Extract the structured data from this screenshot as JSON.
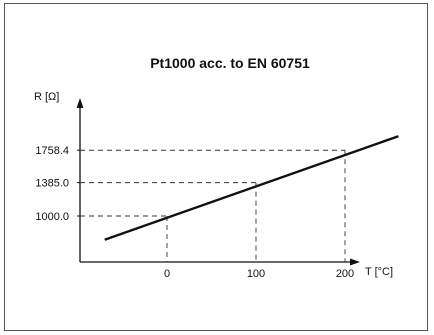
{
  "chart_data": {
    "type": "line",
    "title": "Pt1000 acc. to EN 60751",
    "xlabel": "T [°C]",
    "ylabel": "R [Ω]",
    "series": [
      {
        "x": [
          -70,
          260
        ],
        "y": [
          727,
          1920
        ]
      }
    ],
    "x_ticks": [
      {
        "value": 0,
        "label": "0"
      },
      {
        "value": 100,
        "label": "100"
      },
      {
        "value": 200,
        "label": "200"
      }
    ],
    "y_ticks": [
      {
        "value": 1000.0,
        "label": "1000.0"
      },
      {
        "value": 1385.0,
        "label": "1385.0"
      },
      {
        "value": 1758.4,
        "label": "1758.4"
      }
    ],
    "reference_points": [
      {
        "x": 0,
        "y": 1000.0
      },
      {
        "x": 100,
        "y": 1385.0
      },
      {
        "x": 200,
        "y": 1758.4
      }
    ],
    "grid": false,
    "colors": {
      "line": "#111111",
      "axis": "#111111",
      "guide": "#333333"
    }
  }
}
